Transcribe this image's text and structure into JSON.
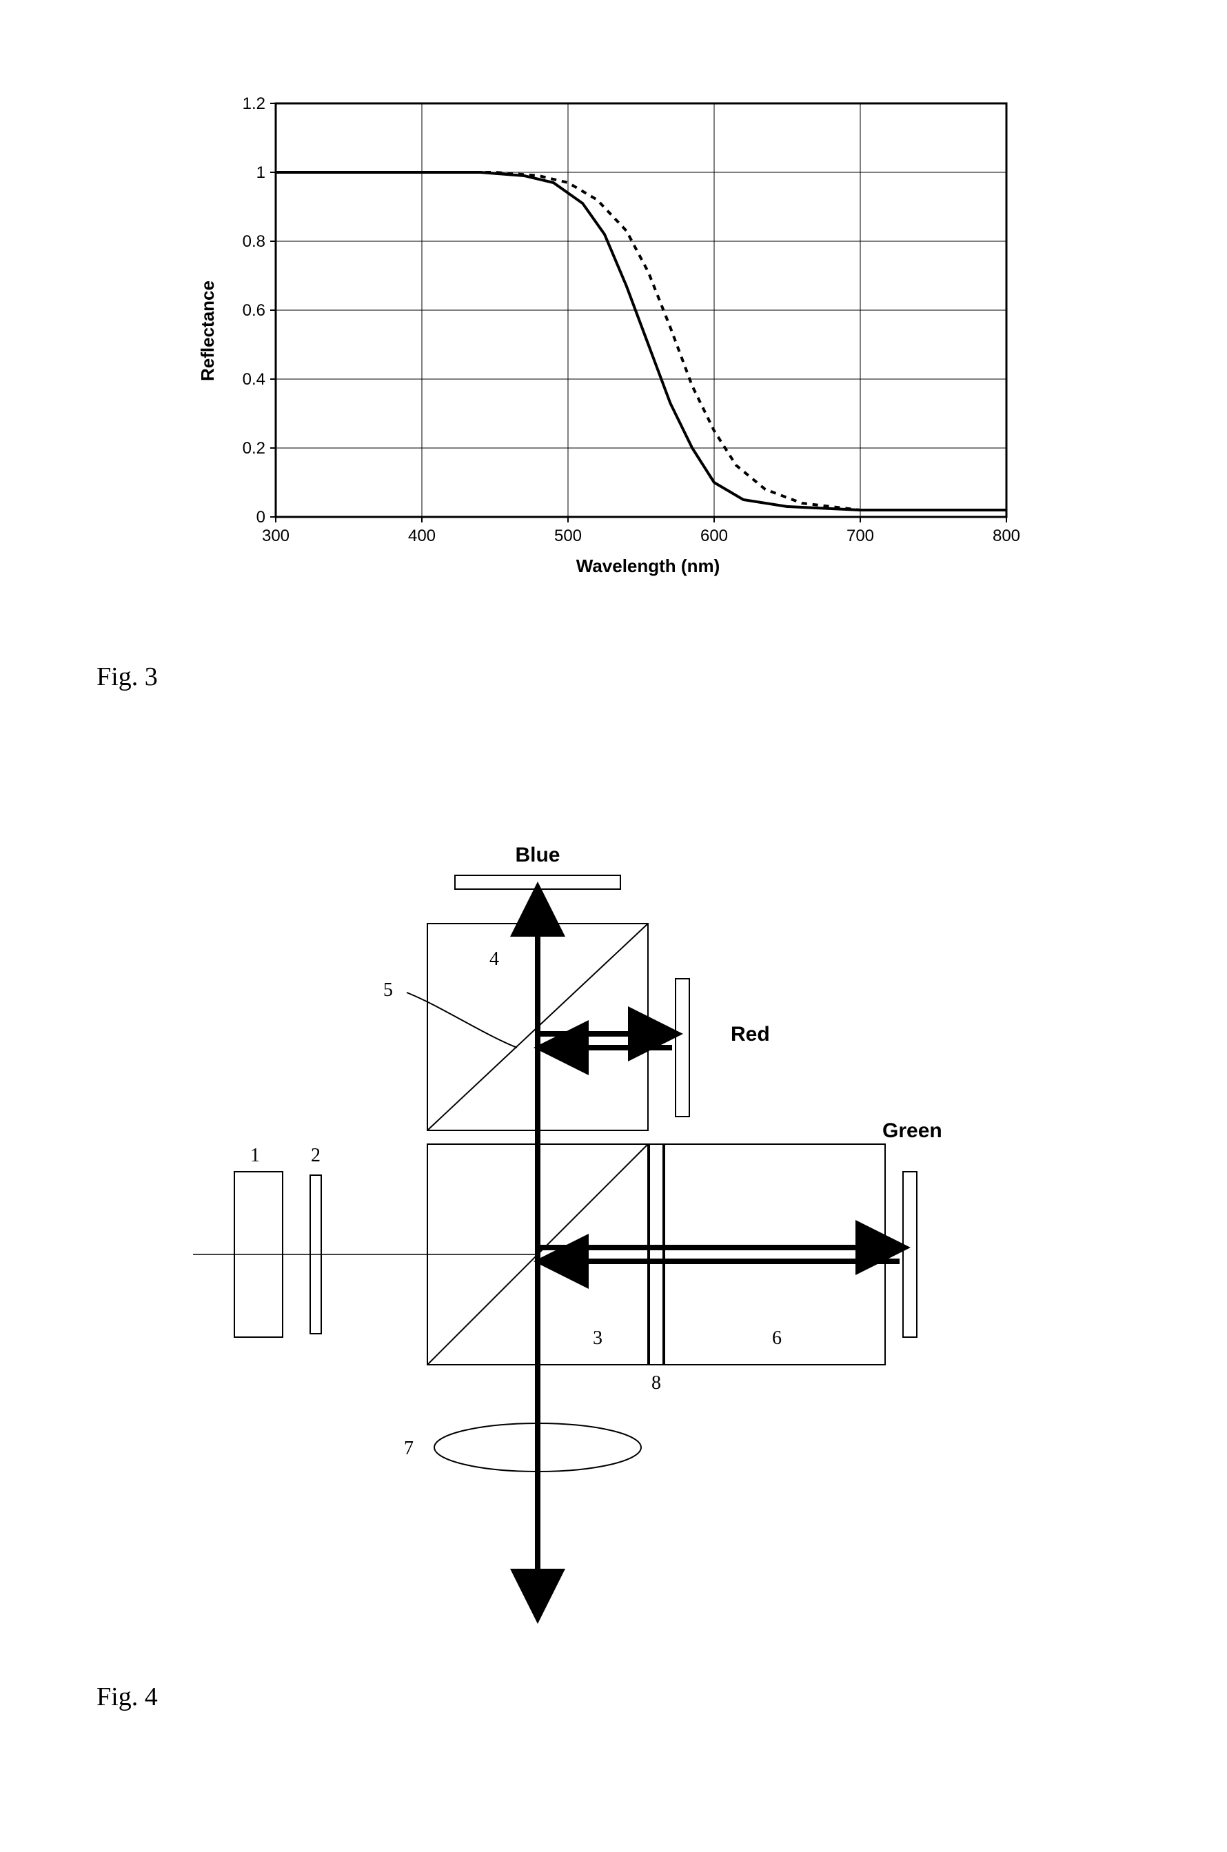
{
  "fig3": {
    "caption": "Fig. 3",
    "chart": {
      "type": "line",
      "background_color": "#ffffff",
      "grid_color": "#000000",
      "axis_color": "#000000",
      "xlabel": "Wavelength (nm)",
      "ylabel": "Reflectance",
      "label_fontsize": 26,
      "label_fontweight": "bold",
      "tick_fontsize": 24,
      "xlim": [
        300,
        800
      ],
      "ylim": [
        0,
        1.2
      ],
      "xticks": [
        300,
        400,
        500,
        600,
        700,
        800
      ],
      "yticks": [
        0,
        0.2,
        0.4,
        0.6,
        0.8,
        1,
        1.2
      ],
      "grid_on": true,
      "series": [
        {
          "name": "solid",
          "color": "#000000",
          "line_width": 4,
          "dash": "none",
          "x": [
            300,
            350,
            400,
            440,
            470,
            490,
            510,
            525,
            540,
            555,
            570,
            585,
            600,
            620,
            650,
            700,
            750,
            800
          ],
          "y": [
            1.0,
            1.0,
            1.0,
            1.0,
            0.99,
            0.97,
            0.91,
            0.82,
            0.67,
            0.5,
            0.33,
            0.2,
            0.1,
            0.05,
            0.03,
            0.02,
            0.02,
            0.02
          ]
        },
        {
          "name": "dashed",
          "color": "#000000",
          "line_width": 4,
          "dash": "8,8",
          "x": [
            300,
            350,
            400,
            450,
            480,
            500,
            520,
            540,
            555,
            570,
            585,
            600,
            615,
            635,
            660,
            700,
            750,
            800
          ],
          "y": [
            1.0,
            1.0,
            1.0,
            1.0,
            0.99,
            0.97,
            0.92,
            0.83,
            0.71,
            0.55,
            0.38,
            0.25,
            0.15,
            0.08,
            0.04,
            0.02,
            0.02,
            0.02
          ]
        }
      ]
    }
  },
  "fig4": {
    "caption": "Fig. 4",
    "diagram": {
      "type": "optical-schematic",
      "stroke_color": "#000000",
      "background_color": "#ffffff",
      "arrow_color": "#000000",
      "arrow_width": 6,
      "label_fontsize": 30,
      "label_fontweight": "bold",
      "num_fontsize": 28,
      "labels": {
        "blue": "Blue",
        "red": "Red",
        "green": "Green"
      },
      "nums": {
        "n1": "1",
        "n2": "2",
        "n3": "3",
        "n4": "4",
        "n5": "5",
        "n6": "6",
        "n7": "7",
        "n8": "8"
      }
    }
  }
}
